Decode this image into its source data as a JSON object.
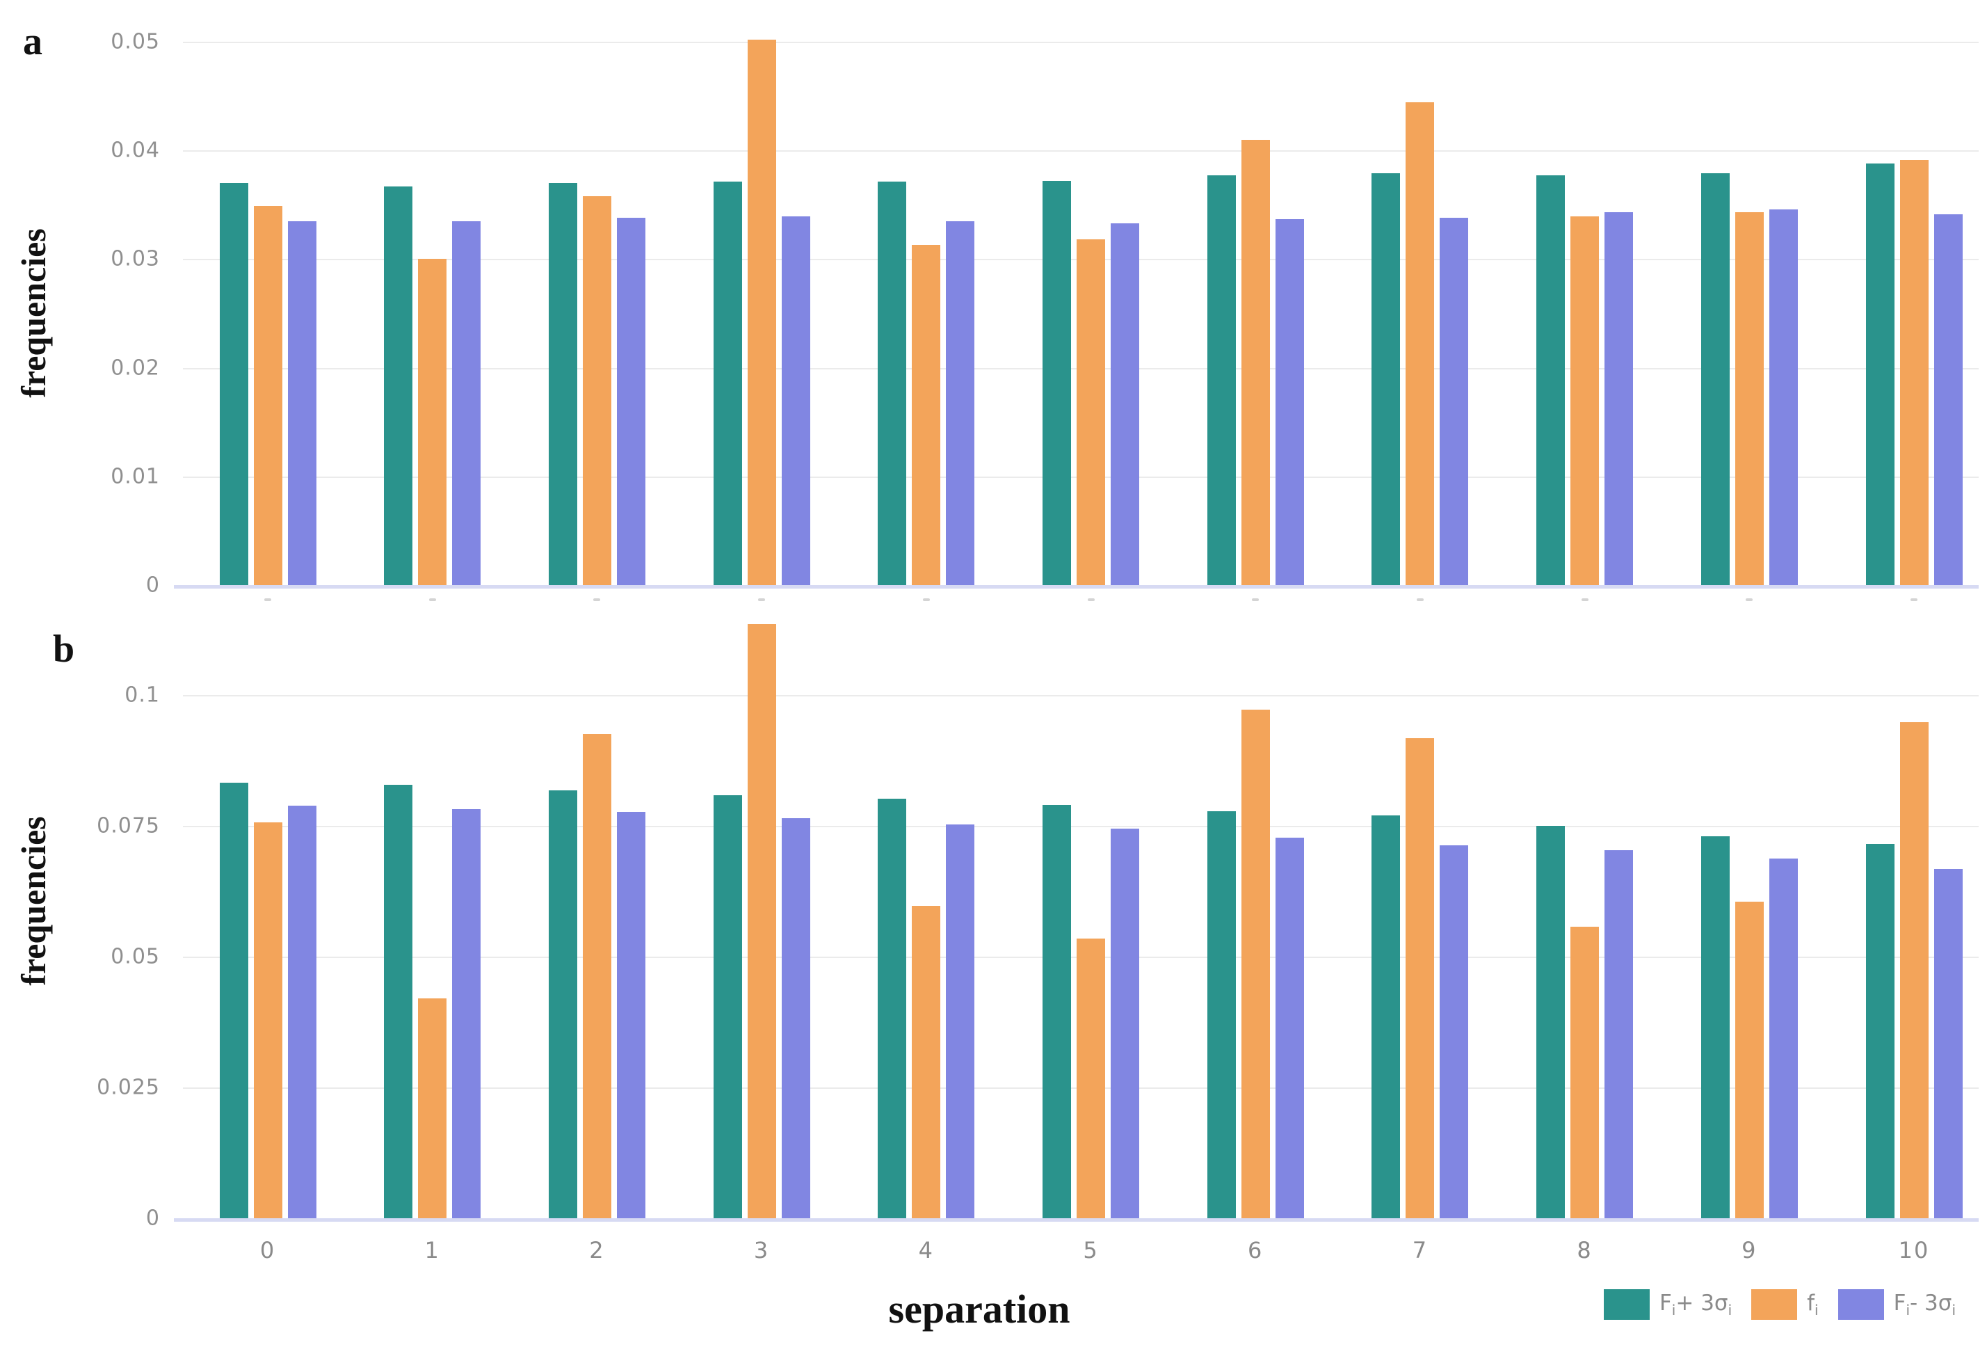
{
  "figure": {
    "background": "#ffffff",
    "grid_color": "#ebebeb",
    "axis_line_color": "#d7daf3",
    "tick_text_color": "#8f8f8f"
  },
  "chart_data": [
    {
      "panel_label": "a",
      "type": "bar",
      "title": "",
      "ylabel": "frequencies",
      "xlabel": "",
      "categories": [
        "0",
        "1",
        "2",
        "3",
        "4",
        "5",
        "6",
        "7",
        "8",
        "9",
        "10"
      ],
      "x_labels_visible": false,
      "ytick_labels": [
        "0",
        "0.01",
        "0.02",
        "0.03",
        "0.04",
        "0.05"
      ],
      "ytick_values": [
        0,
        0.01,
        0.02,
        0.03,
        0.04,
        0.05
      ],
      "ylim": [
        0,
        0.0526
      ],
      "grid": true,
      "series": [
        {
          "name": "F_i+ 3σ_i",
          "color": "#2a938c",
          "values": [
            0.037,
            0.0367,
            0.037,
            0.0371,
            0.0371,
            0.0372,
            0.0377,
            0.0379,
            0.0377,
            0.0379,
            0.0388
          ]
        },
        {
          "name": "f_i",
          "color": "#f3a45a",
          "values": [
            0.0349,
            0.03,
            0.0358,
            0.0502,
            0.0313,
            0.0318,
            0.041,
            0.0444,
            0.0339,
            0.0343,
            0.0391
          ]
        },
        {
          "name": "F_i- 3σ_i",
          "color": "#8186e2",
          "values": [
            0.0335,
            0.0335,
            0.0338,
            0.0339,
            0.0335,
            0.0333,
            0.0337,
            0.0338,
            0.0343,
            0.0346,
            0.0341
          ]
        }
      ]
    },
    {
      "panel_label": "b",
      "type": "bar",
      "title": "",
      "ylabel": "frequencies",
      "xlabel": "separation",
      "categories": [
        "0",
        "1",
        "2",
        "3",
        "4",
        "5",
        "6",
        "7",
        "8",
        "9",
        "10"
      ],
      "x_labels_visible": true,
      "ytick_labels": [
        "0",
        "0.025",
        "0.05",
        "0.075",
        "0.1"
      ],
      "ytick_values": [
        0,
        0.025,
        0.05,
        0.075,
        0.1
      ],
      "ylim": [
        0,
        0.121
      ],
      "grid": true,
      "series": [
        {
          "name": "F_i+ 3σ_i",
          "color": "#2a938c",
          "values": [
            0.0832,
            0.0828,
            0.0818,
            0.0808,
            0.0802,
            0.079,
            0.0778,
            0.077,
            0.075,
            0.073,
            0.0715
          ]
        },
        {
          "name": "f_i",
          "color": "#f3a45a",
          "values": [
            0.0756,
            0.042,
            0.0925,
            0.1135,
            0.0597,
            0.0535,
            0.0972,
            0.0917,
            0.0557,
            0.0605,
            0.0948
          ]
        },
        {
          "name": "F_i- 3σ_i",
          "color": "#8186e2",
          "values": [
            0.0789,
            0.0782,
            0.0777,
            0.0764,
            0.0752,
            0.0745,
            0.0728,
            0.0713,
            0.0703,
            0.0688,
            0.0668
          ]
        }
      ]
    }
  ],
  "legend": {
    "position": "bottom-right",
    "items": [
      {
        "color": "#2a938c",
        "segments": [
          {
            "t": "F"
          },
          {
            "t": "i",
            "sub": true
          },
          {
            "t": "+ 3σ"
          },
          {
            "t": "i",
            "sub": true
          }
        ]
      },
      {
        "color": "#f3a45a",
        "segments": [
          {
            "t": "f"
          },
          {
            "t": "i",
            "sub": true
          }
        ]
      },
      {
        "color": "#8186e2",
        "segments": [
          {
            "t": "F"
          },
          {
            "t": "i",
            "sub": true
          },
          {
            "t": "- 3σ"
          },
          {
            "t": "i",
            "sub": true
          }
        ]
      }
    ]
  }
}
